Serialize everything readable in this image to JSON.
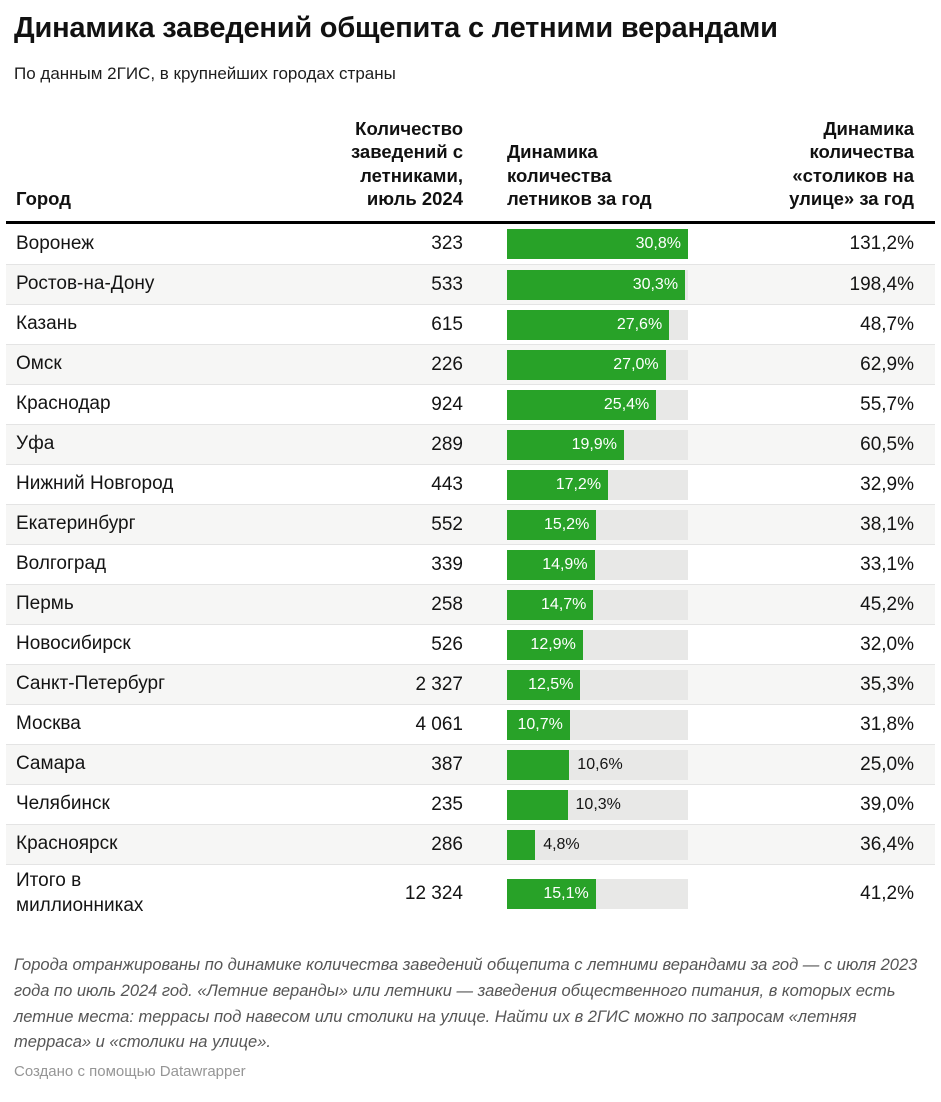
{
  "chart_data": {
    "type": "table",
    "title": "Динамика заведений общепита с летними верандами",
    "subtitle": "По данным 2ГИС, в крупнейших городах страны",
    "columns": [
      "Город",
      "Количество заведений с летниками, июль 2024",
      "Динамика количества летников за год",
      "Динамика количества «столиков на улице» за год"
    ],
    "bar_column": {
      "embedded_chart_type": "bar",
      "scale_max_pct": 30.8,
      "bar_color": "#28a228",
      "track_color": "#e8e8e7",
      "label_color_inside": "#ffffff",
      "label_color_outside": "#141414"
    },
    "rows": [
      {
        "city": "Воронеж",
        "count": "323",
        "dynamics_pct": 30.8,
        "dynamics_label": "30,8%",
        "label_inside": true,
        "street_tables_label": "131,2%"
      },
      {
        "city": "Ростов-на-Дону",
        "count": "533",
        "dynamics_pct": 30.3,
        "dynamics_label": "30,3%",
        "label_inside": true,
        "street_tables_label": "198,4%"
      },
      {
        "city": "Казань",
        "count": "615",
        "dynamics_pct": 27.6,
        "dynamics_label": "27,6%",
        "label_inside": true,
        "street_tables_label": "48,7%"
      },
      {
        "city": "Омск",
        "count": "226",
        "dynamics_pct": 27.0,
        "dynamics_label": "27,0%",
        "label_inside": true,
        "street_tables_label": "62,9%"
      },
      {
        "city": "Краснодар",
        "count": "924",
        "dynamics_pct": 25.4,
        "dynamics_label": "25,4%",
        "label_inside": true,
        "street_tables_label": "55,7%"
      },
      {
        "city": "Уфа",
        "count": "289",
        "dynamics_pct": 19.9,
        "dynamics_label": "19,9%",
        "label_inside": true,
        "street_tables_label": "60,5%"
      },
      {
        "city": "Нижний Новгород",
        "count": "443",
        "dynamics_pct": 17.2,
        "dynamics_label": "17,2%",
        "label_inside": true,
        "street_tables_label": "32,9%"
      },
      {
        "city": "Екатеринбург",
        "count": "552",
        "dynamics_pct": 15.2,
        "dynamics_label": "15,2%",
        "label_inside": true,
        "street_tables_label": "38,1%"
      },
      {
        "city": "Волгоград",
        "count": "339",
        "dynamics_pct": 14.9,
        "dynamics_label": "14,9%",
        "label_inside": true,
        "street_tables_label": "33,1%"
      },
      {
        "city": "Пермь",
        "count": "258",
        "dynamics_pct": 14.7,
        "dynamics_label": "14,7%",
        "label_inside": true,
        "street_tables_label": "45,2%"
      },
      {
        "city": "Новосибирск",
        "count": "526",
        "dynamics_pct": 12.9,
        "dynamics_label": "12,9%",
        "label_inside": true,
        "street_tables_label": "32,0%"
      },
      {
        "city": "Санкт-Петербург",
        "count": "2 327",
        "dynamics_pct": 12.5,
        "dynamics_label": "12,5%",
        "label_inside": true,
        "street_tables_label": "35,3%"
      },
      {
        "city": "Москва",
        "count": "4 061",
        "dynamics_pct": 10.7,
        "dynamics_label": "10,7%",
        "label_inside": true,
        "street_tables_label": "31,8%"
      },
      {
        "city": "Самара",
        "count": "387",
        "dynamics_pct": 10.6,
        "dynamics_label": "10,6%",
        "label_inside": false,
        "street_tables_label": "25,0%"
      },
      {
        "city": "Челябинск",
        "count": "235",
        "dynamics_pct": 10.3,
        "dynamics_label": "10,3%",
        "label_inside": false,
        "street_tables_label": "39,0%"
      },
      {
        "city": "Красноярск",
        "count": "286",
        "dynamics_pct": 4.8,
        "dynamics_label": "4,8%",
        "label_inside": false,
        "street_tables_label": "36,4%"
      },
      {
        "city": "Итого в миллионниках",
        "count": "12 324",
        "dynamics_pct": 15.1,
        "dynamics_label": "15,1%",
        "label_inside": true,
        "street_tables_label": "41,2%"
      }
    ]
  },
  "footer": {
    "note": "Города отранжированы по динамике количества заведений общепита с летними верандами за год — с июля 2023 года по июль 2024 год. «Летние веранды» или летники — заведения общественного питания, в которых есть летние места: террасы под навесом или столики на улице. Найти их в 2ГИС можно по запросам «летняя терраса» и «столики на улице».",
    "credit": "Создано с помощью Datawrapper"
  }
}
